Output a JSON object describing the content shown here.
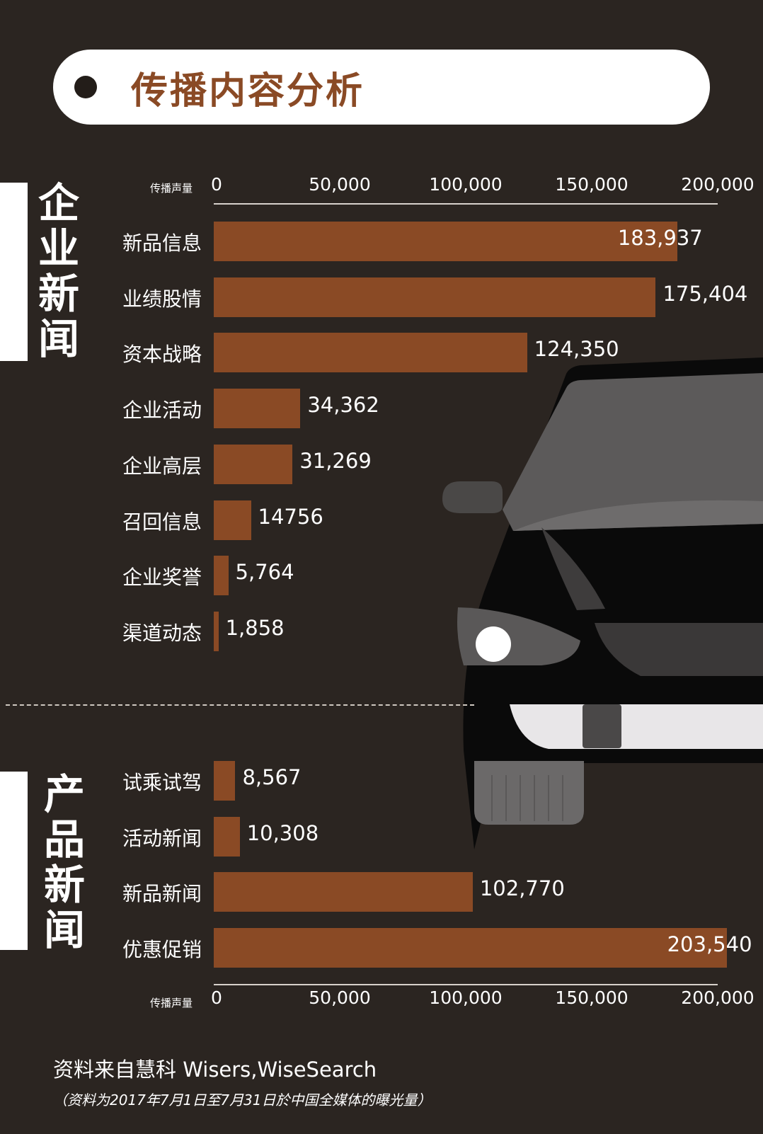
{
  "header": {
    "title": "传播内容分析"
  },
  "sections": [
    {
      "label_chars": [
        "企",
        "业",
        "新",
        "闻"
      ]
    },
    {
      "label_chars": [
        "产",
        "品",
        "新",
        "闻"
      ]
    }
  ],
  "axis": {
    "title": "传播声量",
    "ticks": [
      "0",
      "50,000",
      "100,000",
      "150,000",
      "200,000"
    ]
  },
  "chart_data": [
    {
      "type": "bar",
      "orientation": "horizontal",
      "group": "企业新闻",
      "xlabel": "传播声量",
      "xlim": [
        0,
        200000
      ],
      "categories": [
        "新品信息",
        "业绩股情",
        "资本战略",
        "企业活动",
        "企业高层",
        "召回信息",
        "企业奖誉",
        "渠道动态"
      ],
      "values": [
        183937,
        175404,
        124350,
        34362,
        31269,
        14756,
        5764,
        1858
      ],
      "labels": [
        "183,937",
        "175,404",
        "124,350",
        "34,362",
        "31,269",
        "14756",
        "5,764",
        "1,858"
      ]
    },
    {
      "type": "bar",
      "orientation": "horizontal",
      "group": "产品新闻",
      "xlabel": "传播声量",
      "xlim": [
        0,
        200000
      ],
      "categories": [
        "试乘试驾",
        "活动新闻",
        "新品新闻",
        "优惠促销"
      ],
      "values": [
        8567,
        10308,
        102770,
        203540
      ],
      "labels": [
        "8,567",
        "10,308",
        "102,770",
        "203,540"
      ]
    }
  ],
  "colors": {
    "bar": "#8a4a25",
    "background": "#2b2521",
    "title": "#8a4a25"
  },
  "footer": {
    "source": "资料来自慧科 Wisers,WiseSearch",
    "note": "（资料为2017年7月1日至7月31日於中国全媒体的曝光量）"
  }
}
